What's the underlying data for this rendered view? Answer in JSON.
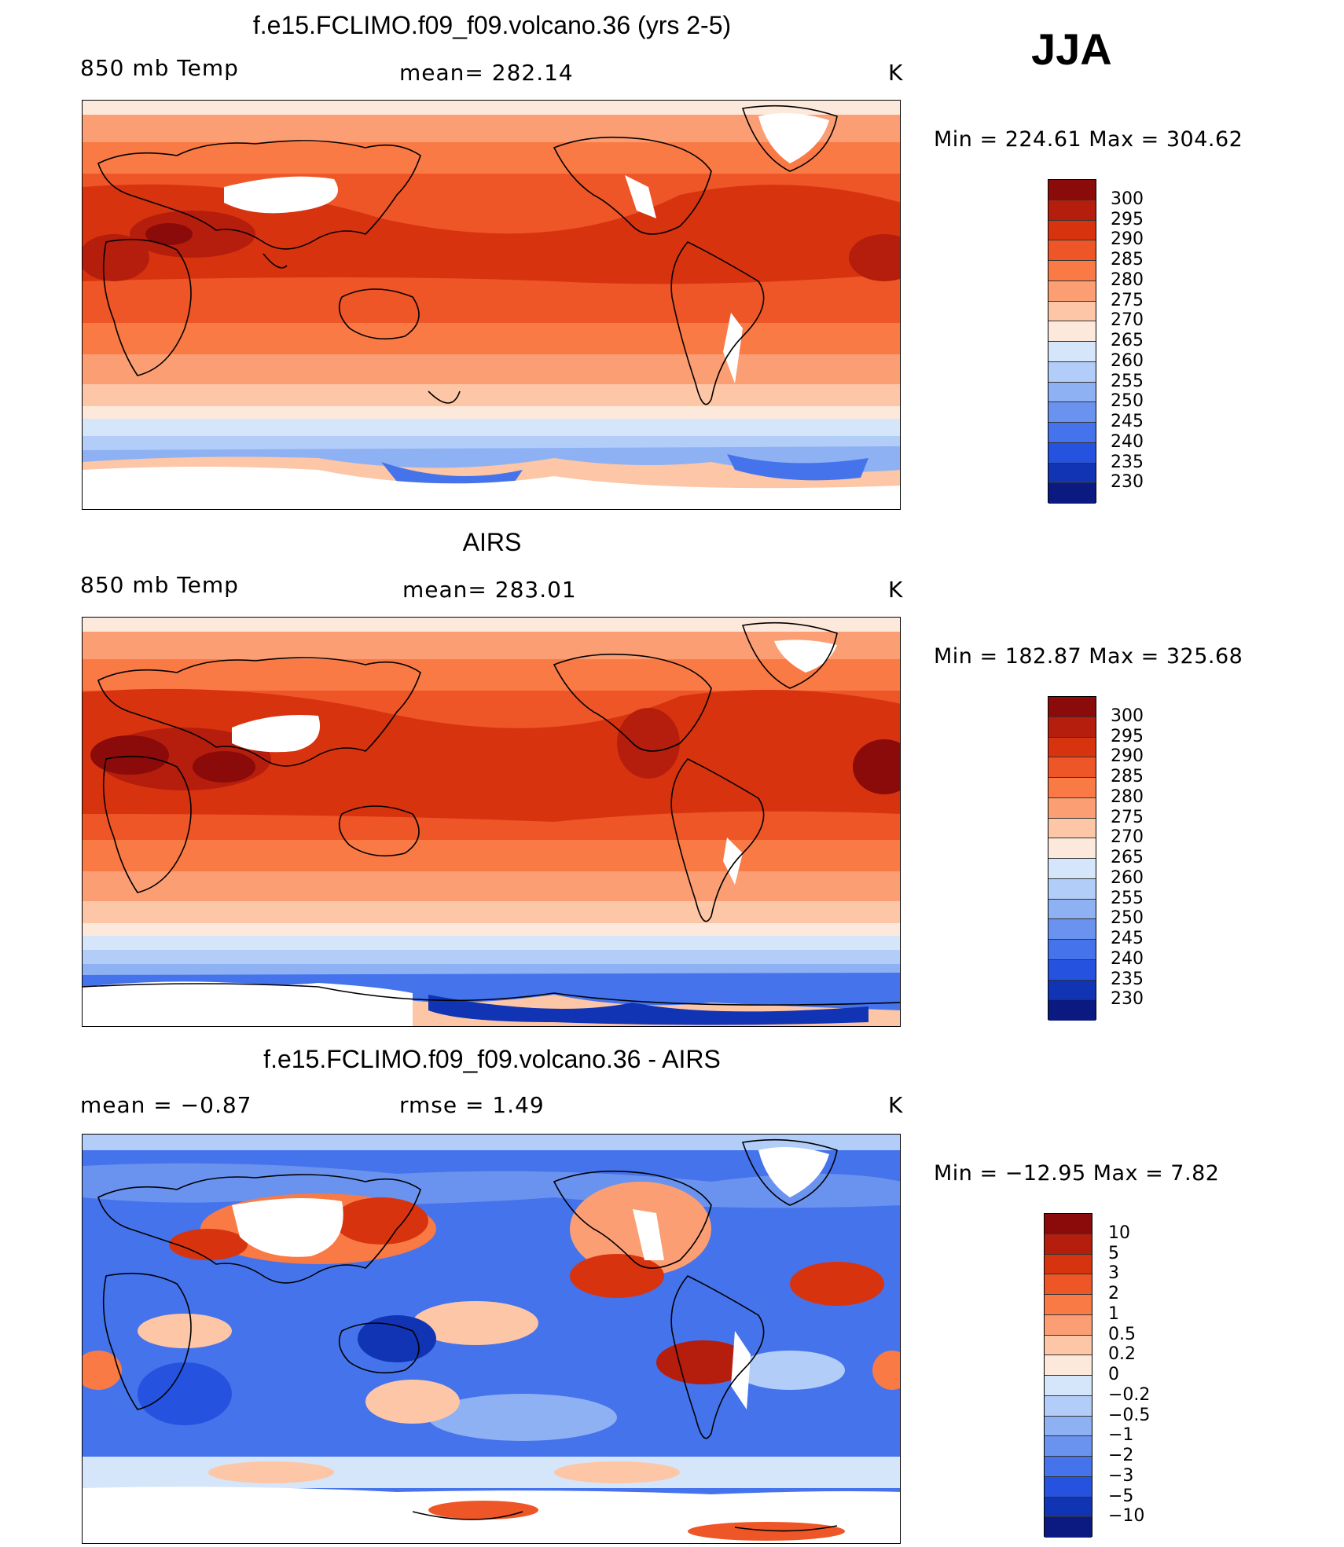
{
  "season": "JJA",
  "panels": [
    {
      "title": "f.e15.FCLIMO.f09_f09.volcano.36 (yrs 2-5)",
      "variable": "850 mb Temp",
      "stat": "mean=  282.14",
      "units": "K",
      "minmax": "Min  =  224.61  Max  =  304.62",
      "colorbar_labels": [
        "300",
        "295",
        "290",
        "285",
        "280",
        "275",
        "270",
        "265",
        "260",
        "255",
        "250",
        "245",
        "240",
        "235",
        "230"
      ],
      "colorbar_colors": [
        "#8b0a0a",
        "#b51d0c",
        "#d8330f",
        "#ee5527",
        "#f97a45",
        "#fb9e74",
        "#fdc6a6",
        "#fde9dc",
        "#d6e6fa",
        "#b2cdf7",
        "#8eb1f3",
        "#6a93ef",
        "#4573eb",
        "#2553e0",
        "#1034b4",
        "#0a1a80"
      ]
    },
    {
      "title": "AIRS",
      "variable": "850 mb Temp",
      "stat": "mean=  283.01",
      "units": "K",
      "minmax": "Min  =  182.87  Max  =  325.68",
      "colorbar_labels": [
        "300",
        "295",
        "290",
        "285",
        "280",
        "275",
        "270",
        "265",
        "260",
        "255",
        "250",
        "245",
        "240",
        "235",
        "230"
      ],
      "colorbar_colors": [
        "#8b0a0a",
        "#b51d0c",
        "#d8330f",
        "#ee5527",
        "#f97a45",
        "#fb9e74",
        "#fdc6a6",
        "#fde9dc",
        "#d6e6fa",
        "#b2cdf7",
        "#8eb1f3",
        "#6a93ef",
        "#4573eb",
        "#2553e0",
        "#1034b4",
        "#0a1a80"
      ]
    },
    {
      "title": "f.e15.FCLIMO.f09_f09.volcano.36 - AIRS",
      "stat_left": "mean  =    −0.87",
      "stat_mid": "rmse  =     1.49",
      "units": "K",
      "minmax": "Min  =  −12.95  Max  =      7.82",
      "colorbar_labels": [
        "10",
        "5",
        "3",
        "2",
        "1",
        "0.5",
        "0.2",
        "0",
        "−0.2",
        "−0.5",
        "−1",
        "−2",
        "−3",
        "−5",
        "−10"
      ],
      "colorbar_colors": [
        "#8b0a0a",
        "#b51d0c",
        "#d8330f",
        "#ee5527",
        "#f97a45",
        "#fb9e74",
        "#fdc6a6",
        "#fde9dc",
        "#d6e6fa",
        "#b2cdf7",
        "#8eb1f3",
        "#6a93ef",
        "#4573eb",
        "#2553e0",
        "#1034b4",
        "#0a1a80"
      ]
    }
  ]
}
